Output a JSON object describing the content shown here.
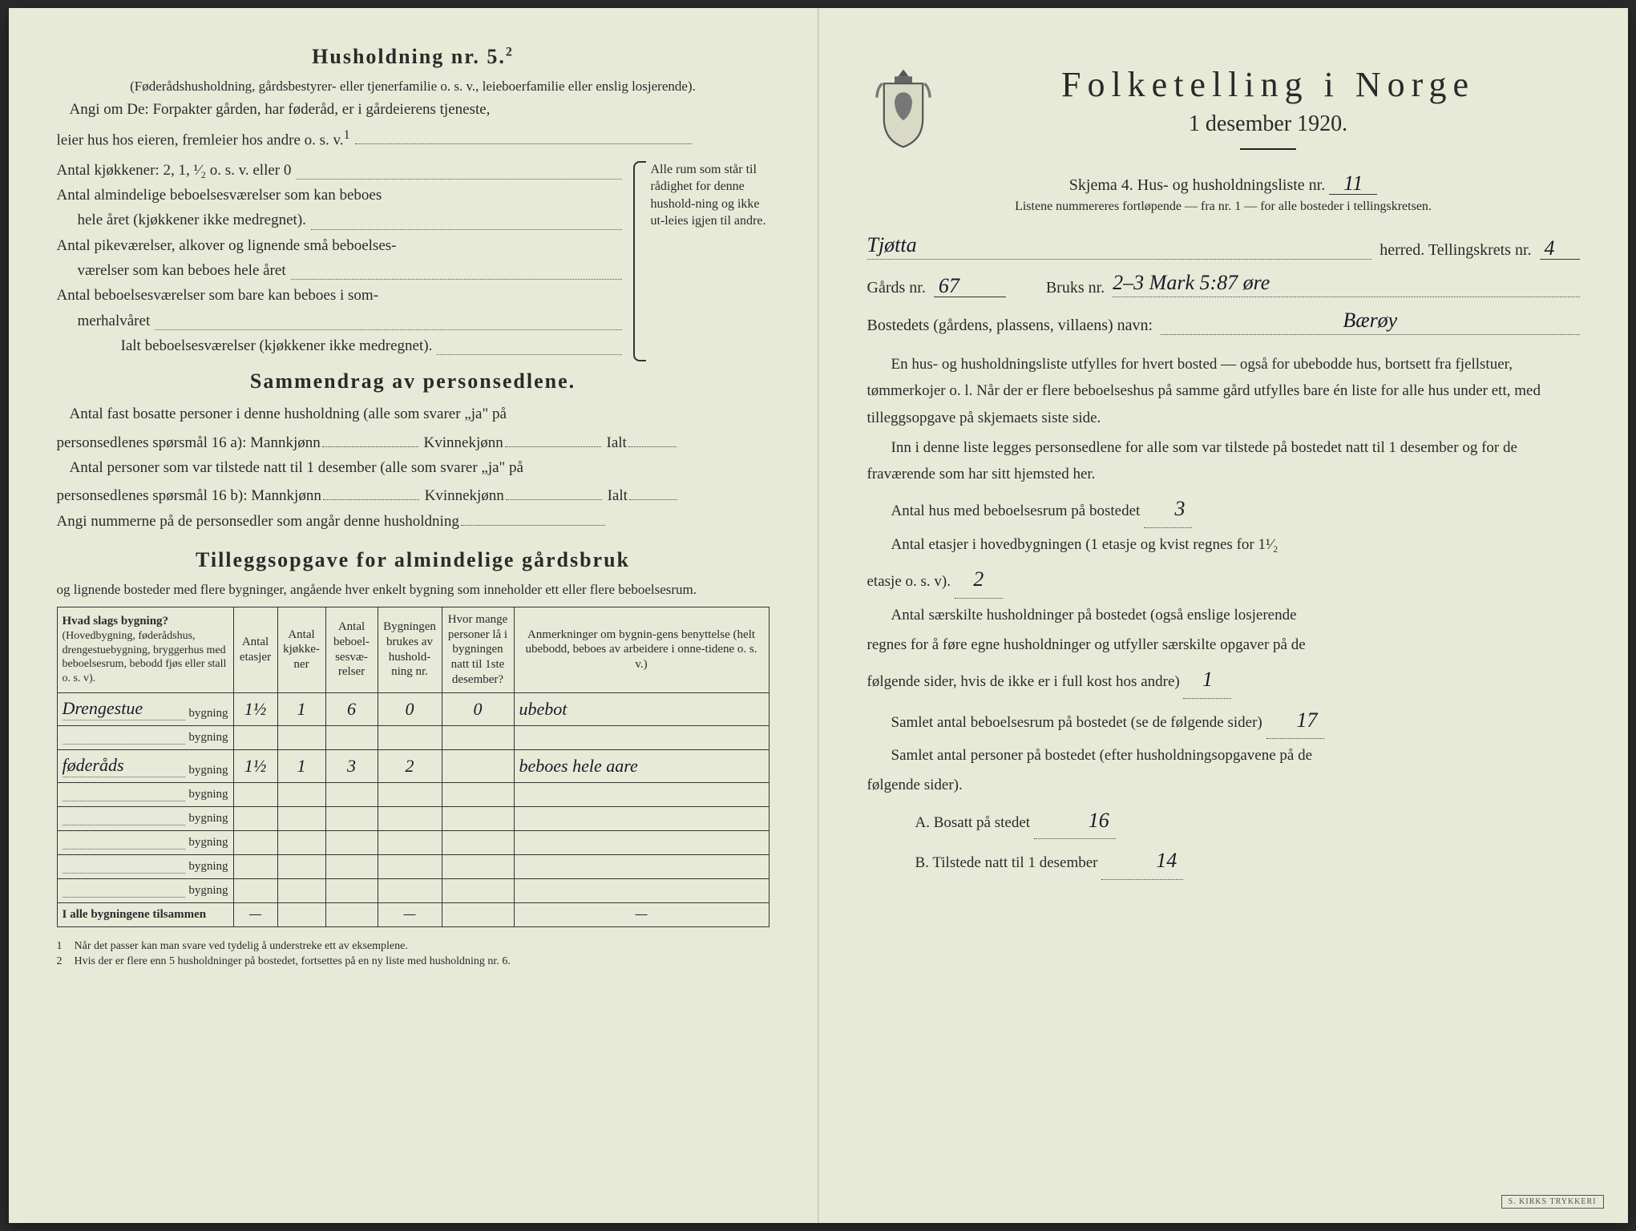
{
  "colors": {
    "paper": "#e8ead8",
    "ink": "#2a2a2a",
    "handwriting": "#1a1a2a",
    "table_border": "#333333",
    "dotted": "#555555"
  },
  "left": {
    "title": "Husholdning nr. 5.",
    "title_sup": "2",
    "intro_small": "(Føderådshusholdning, gårdsbestyrer- eller tjenerfamilie o. s. v., leieboerfamilie eller enslig losjerende).",
    "intro_body1": "Angi om De: Forpakter gården, har føderåd, er i gårdeierens tjeneste,",
    "intro_body2": "leier hus hos eieren, fremleier hos andre o. s. v.",
    "intro_sup": "1",
    "rooms": {
      "l1": "Antal kjøkkener: 2, 1, ¹⁄₂ o. s. v. eller 0",
      "l2a": "Antal almindelige beboelsesværelser som kan beboes",
      "l2b": "hele året (kjøkkener ikke medregnet).",
      "l3a": "Antal pikeværelser, alkover og lignende små beboelses-",
      "l3b": "værelser som kan beboes hele året",
      "l4a": "Antal beboelsesværelser som bare kan beboes i som-",
      "l4b": "merhalvåret",
      "l5": "Ialt beboelsesværelser  (kjøkkener ikke medregnet).",
      "side": "Alle rum som står til rådighet for denne hushold-ning og ikke ut-leies igjen til andre."
    },
    "sammen_title": "Sammendrag av personsedlene.",
    "sammen_p1a": "Antal fast bosatte personer i denne husholdning (alle som svarer „ja\" på",
    "sammen_p1b": "personsedlenes spørsmål 16 a):  Mannkjønn",
    "sammen_kv": "Kvinnekjønn",
    "sammen_ialt": "Ialt",
    "sammen_p2a": "Antal personer som var tilstede natt til 1 desember (alle som svarer „ja\" på",
    "sammen_p2b": "personsedlenes spørsmål 16 b):  Mannkjønn",
    "sammen_p3": "Angi nummerne på de personsedler som angår denne husholdning",
    "tillegg_title": "Tilleggsopgave for almindelige gårdsbruk",
    "tillegg_sub": "og lignende bosteder med flere bygninger, angående hver enkelt bygning som inneholder ett eller flere beboelsesrum.",
    "table": {
      "headers": {
        "c1a": "Hvad slags bygning?",
        "c1b": "(Hovedbygning, føderådshus, drengestuebygning, bryggerhus med beboelsesrum, bebodd fjøs eller stall o. s. v).",
        "c2": "Antal etasjer",
        "c3": "Antal kjøkke-ner",
        "c4": "Antal beboel-sesvæ-relser",
        "c5": "Bygningen brukes av hushold-ning nr.",
        "c6": "Hvor mange personer lå i bygningen natt til 1ste desember?",
        "c7": "Anmerkninger om bygnin-gens benyttelse (helt ubebodd, beboes av arbeidere i onne-tidene o. s. v.)"
      },
      "suffix": "bygning",
      "rows": [
        {
          "name": "Drengestue",
          "etasjer": "1½",
          "kjokken": "1",
          "beboelse": "6",
          "hush": "0",
          "pers": "0",
          "anm": "ubebot"
        },
        {
          "name": "",
          "etasjer": "",
          "kjokken": "",
          "beboelse": "",
          "hush": "",
          "pers": "",
          "anm": ""
        },
        {
          "name": "føderåds",
          "etasjer": "1½",
          "kjokken": "1",
          "beboelse": "3",
          "hush": "2",
          "pers": "",
          "anm": "beboes hele aare"
        },
        {
          "name": "",
          "etasjer": "",
          "kjokken": "",
          "beboelse": "",
          "hush": "",
          "pers": "",
          "anm": ""
        },
        {
          "name": "",
          "etasjer": "",
          "kjokken": "",
          "beboelse": "",
          "hush": "",
          "pers": "",
          "anm": ""
        },
        {
          "name": "",
          "etasjer": "",
          "kjokken": "",
          "beboelse": "",
          "hush": "",
          "pers": "",
          "anm": ""
        },
        {
          "name": "",
          "etasjer": "",
          "kjokken": "",
          "beboelse": "",
          "hush": "",
          "pers": "",
          "anm": ""
        },
        {
          "name": "",
          "etasjer": "",
          "kjokken": "",
          "beboelse": "",
          "hush": "",
          "pers": "",
          "anm": ""
        }
      ],
      "total_label": "I alle bygningene tilsammen",
      "dash": "—"
    },
    "fn1": "Når det passer kan man svare ved tydelig å understreke ett av eksemplene.",
    "fn2": "Hvis der er flere enn 5 husholdninger på bostedet, fortsettes på en ny liste med husholdning nr. 6."
  },
  "right": {
    "title": "Folketelling  i  Norge",
    "date": "1 desember 1920.",
    "skjema": "Skjema 4.   Hus- og husholdningsliste nr.",
    "skjema_hw": "11",
    "listnote": "Listene nummereres fortløpende — fra nr. 1 — for alle bosteder i tellingskretsen.",
    "herred_hw": "Tjøtta",
    "herred_label": "herred.   Tellingskrets nr.",
    "krets_hw": "4",
    "gards_label": "Gårds nr.",
    "gards_hw": "67",
    "bruks_label": "Bruks nr.",
    "bruks_hw": "2–3  Mark  5:87 øre",
    "bosted_label": "Bostedets (gårdens, plassens, villaens) navn:",
    "bosted_hw": "Bærøy",
    "p1": "En hus- og husholdningsliste utfylles for hvert bosted — også for ubebodde hus, bortsett fra fjellstuer, tømmerkojer o. l.  Når der er flere beboelseshus på samme gård utfylles bare én liste for alle hus under ett, med tilleggsopgave på skjemaets siste side.",
    "p2": "Inn i denne liste legges personsedlene for alle som var tilstede på bostedet natt til 1 desember og for de fraværende som har sitt hjemsted her.",
    "q1": "Antal hus med beboelsesrum på bostedet",
    "q1_hw": "3",
    "q2a": "Antal etasjer i hovedbygningen (1 etasje og kvist regnes for 1¹⁄₂",
    "q2b": "etasje o. s. v).",
    "q2_hw": "2",
    "q3a": "Antal særskilte husholdninger på bostedet (også enslige losjerende",
    "q3b": "regnes for å føre egne husholdninger og utfyller særskilte opgaver på de",
    "q3c": "følgende sider, hvis de ikke er i full kost hos andre)",
    "q3_hw": "1",
    "q4": "Samlet antal beboelsesrum på bostedet (se de følgende sider)",
    "q4_hw": "17",
    "q5a": "Samlet antal personer på bostedet (efter husholdningsopgavene på de",
    "q5b": "følgende sider).",
    "qA": "A.  Bosatt på stedet",
    "qA_hw": "16",
    "qB": "B.  Tilstede natt til 1 desember",
    "qB_hw": "14",
    "stamp": "S. KIRKS TRYKKERI"
  }
}
